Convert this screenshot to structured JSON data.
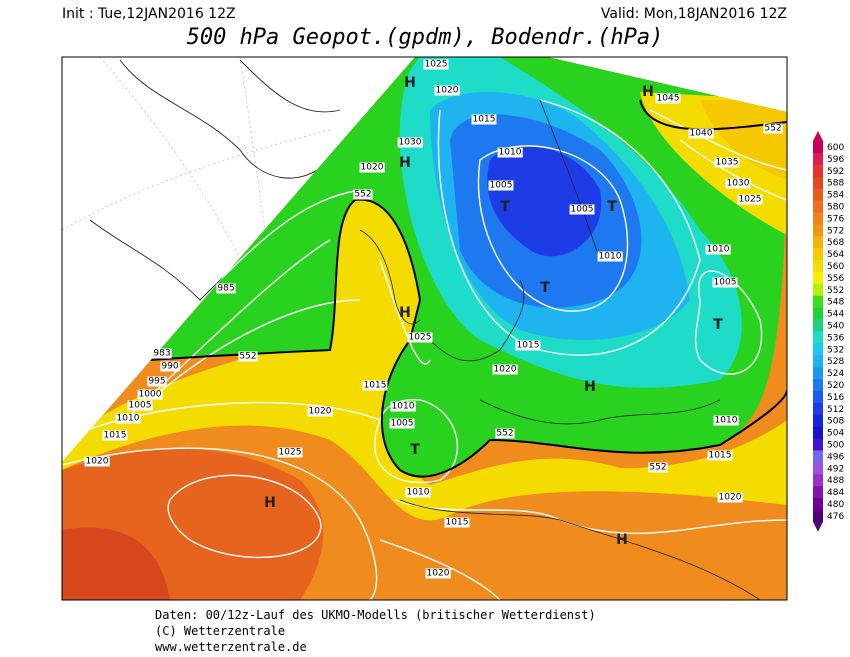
{
  "header": {
    "init": "Init : Tue,12JAN2016 12Z",
    "valid": "Valid: Mon,18JAN2016 12Z",
    "title": "500 hPa Geopot.(gpdm), Bodendr.(hPa)"
  },
  "map": {
    "centers": [
      "H",
      "H",
      "H",
      "H",
      "H",
      "H",
      "H",
      "T",
      "T",
      "T",
      "T",
      "T"
    ],
    "isobar_labels": [
      "1025",
      "1020",
      "1015",
      "1030",
      "1020",
      "1010",
      "1005",
      "1005",
      "1045",
      "1040",
      "1035",
      "1030",
      "1025",
      "1010",
      "1005",
      "1010",
      "985",
      "983",
      "990",
      "995",
      "1000",
      "1005",
      "1010",
      "1015",
      "1020",
      "1025",
      "1015",
      "1020",
      "1015",
      "1020",
      "1010",
      "1005",
      "1025",
      "1010",
      "1015",
      "1020",
      "1010",
      "1015",
      "1020"
    ],
    "contour_labels": [
      "552",
      "552",
      "552",
      "552",
      "552"
    ]
  },
  "colorbar": {
    "ticks": [
      600,
      596,
      592,
      588,
      584,
      580,
      576,
      572,
      568,
      564,
      560,
      556,
      552,
      548,
      544,
      540,
      536,
      532,
      528,
      524,
      520,
      516,
      512,
      508,
      504,
      500,
      496,
      492,
      488,
      484,
      480,
      476
    ],
    "colors": [
      "#c8005a",
      "#dc1e50",
      "#e63232",
      "#e6461e",
      "#e85a1e",
      "#ec6e1e",
      "#f0821e",
      "#f09614",
      "#f5b40a",
      "#f5c800",
      "#f5dc00",
      "#f5f000",
      "#b4f000",
      "#3cdc1e",
      "#1ed23c",
      "#1ed282",
      "#1edcc8",
      "#1ec8f0",
      "#1eb4f0",
      "#1e96f0",
      "#1e78f0",
      "#1e5af0",
      "#1e3ce6",
      "#1428dc",
      "#1414d2",
      "#3c14d2",
      "#7864e6",
      "#a050dc",
      "#9632c8",
      "#8214aa",
      "#6e0096",
      "#500078"
    ]
  },
  "footer": {
    "lines": [
      "Daten: 00/12z-Lauf des UKMO-Modells (britischer Wetterdienst)",
      "(C) Wetterzentrale",
      "www.wetterzentrale.de"
    ]
  }
}
